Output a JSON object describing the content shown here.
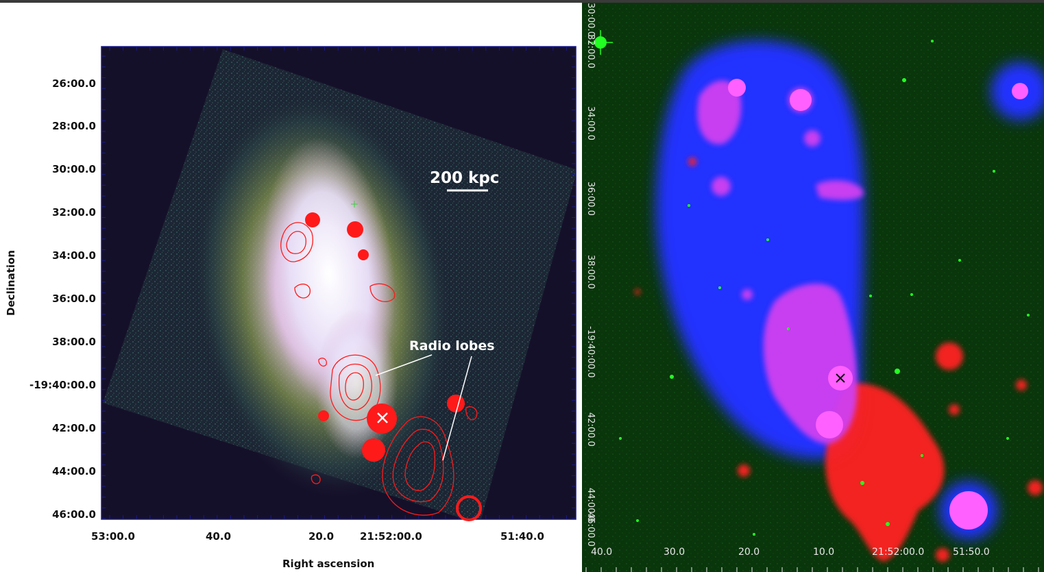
{
  "left_panel": {
    "y_axis_title": "Declination",
    "x_axis_title": "Right ascension",
    "y_ticks": [
      "26:00.0",
      "28:00.0",
      "30:00.0",
      "32:00.0",
      "34:00.0",
      "36:00.0",
      "38:00.0",
      "-19:40:00.0",
      "42:00.0",
      "44:00.0",
      "46:00.0"
    ],
    "x_ticks": [
      "53:00.0",
      "40.0",
      "20.0",
      "21:52:00.0",
      "51:40.0"
    ],
    "scale_bar_label": "200 kpc",
    "annotation": "Radio lobes",
    "colors": {
      "frame": "#1a1a8a",
      "background": "#15102a",
      "contours": "#ff1a1a",
      "marker": "#ffffff"
    }
  },
  "right_panel": {
    "x_ticks": [
      "40.0",
      "30.0",
      "20.0",
      "10.0",
      "21:52:00.0",
      "51:50.0"
    ],
    "y_ticks": [
      "30:00.0",
      "32:00.0",
      "34:00.0",
      "36:00.0",
      "38:00.0",
      "-19:40:00.0",
      "42:00.0",
      "44:00.0",
      "46:00.0"
    ],
    "colors": {
      "background": "#0b3d0b",
      "xray": "#2030ff",
      "radio": "#ff2020",
      "overlap": "#e040ff",
      "marker": "#111111"
    }
  }
}
